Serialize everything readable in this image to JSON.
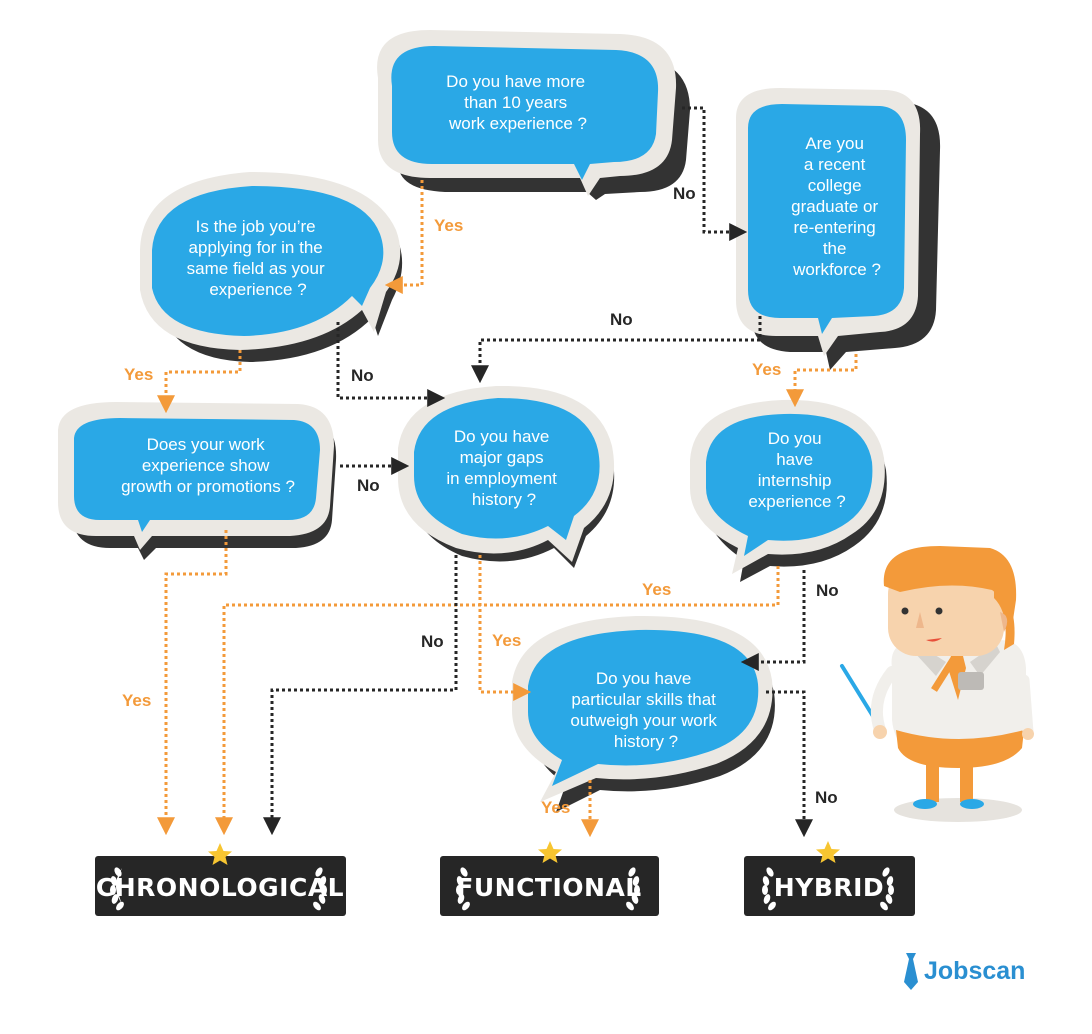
{
  "questions": {
    "q_experience_years": [
      "Do you have more",
      "than 10 years",
      "work experience ?"
    ],
    "q_recent_graduate": [
      "Are you",
      "a recent",
      "college",
      "graduate or",
      "re-entering",
      "the",
      "workforce ?"
    ],
    "q_same_field": [
      "Is the job you’re",
      "applying for in the",
      "same field as your",
      "experience  ?"
    ],
    "q_growth": [
      "Does your work",
      "experience show",
      "growth or promotions ?"
    ],
    "q_gaps": [
      "Do you have",
      "major gaps",
      "in employment",
      "history ?"
    ],
    "q_internship": [
      "Do you",
      "have",
      "internship",
      "experience ?"
    ],
    "q_skills": [
      "Do you have",
      "particular skills that",
      "outweigh your work",
      "history ?"
    ]
  },
  "edge_labels": {
    "yes": "Yes",
    "no": "No"
  },
  "results": {
    "chronological": "CHRONOLOGICAL",
    "functional": "FUNCTIONAL",
    "hybrid": "HYBRID"
  },
  "brand": {
    "name": "Jobscan"
  },
  "colors": {
    "bubble_blue": "#2aa8e6",
    "bubble_frame": "#ebe8e3",
    "shadow": "#333333",
    "yes_line": "#f39a3a",
    "no_line": "#262626",
    "star": "#f7c531",
    "result_bg": "#262626",
    "brand": "#2a8fd1"
  },
  "icons": {
    "result_star": "star-icon",
    "laurel": "laurel-icon",
    "brand_logo": "tie-icon"
  }
}
